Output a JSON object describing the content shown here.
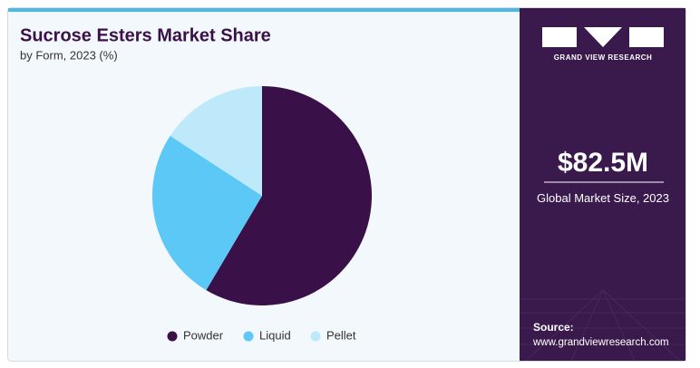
{
  "chart_data": {
    "type": "pie",
    "title": "Sucrose Esters Market Share",
    "subtitle": "by Form, 2023 (%)",
    "categories": [
      "Powder",
      "Liquid",
      "Pellet"
    ],
    "values": [
      58.5,
      25.7,
      15.8
    ],
    "colors": [
      "#3a1049",
      "#5bc8f5",
      "#bde9fa"
    ],
    "legend": "bottom"
  },
  "sidebar": {
    "brand": "GRAND VIEW RESEARCH",
    "market_size": "$82.5M",
    "market_size_label": "Global Market Size, 2023",
    "source_label": "Source:",
    "source_url": "www.grandviewresearch.com"
  }
}
